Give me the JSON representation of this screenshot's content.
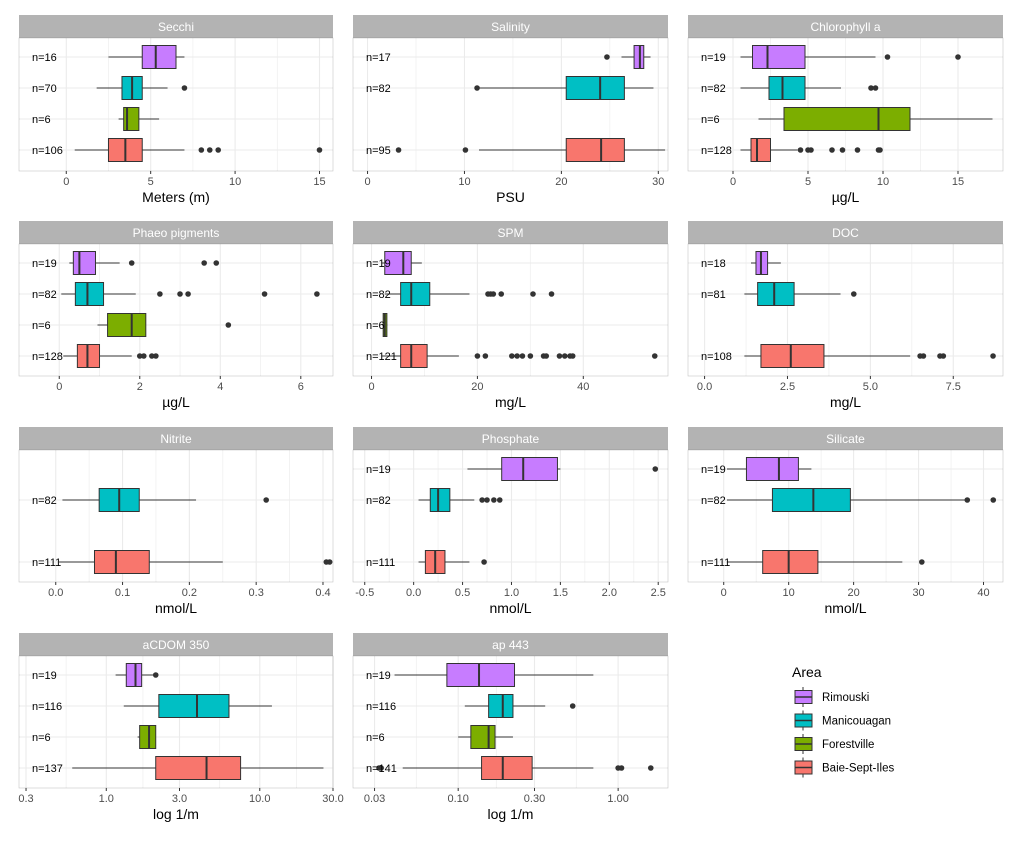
{
  "chart_data": {
    "type": "box",
    "legend": {
      "title": "Area",
      "placement": "bottom-right",
      "entries": [
        {
          "name": "Rimouski",
          "color": "#C77CFF"
        },
        {
          "name": "Manicouagan",
          "color": "#00BFC4"
        },
        {
          "name": "Forestville",
          "color": "#7CAE00"
        },
        {
          "name": "Baie-Sept-Iles",
          "color": "#F8766D"
        }
      ]
    },
    "panels": [
      {
        "title": "Secchi",
        "xlabel": "Meters (m)",
        "scale": "linear",
        "xlim": [
          -2.8,
          15.8
        ],
        "ticks": [
          0,
          5,
          10,
          15
        ],
        "tick_labels": [
          "0",
          "5",
          "10",
          "15"
        ],
        "rows": 4,
        "boxes": [
          {
            "group": "Rimouski",
            "n_label": "n=16",
            "min": 2.5,
            "q1": 4.5,
            "median": 5.3,
            "q3": 6.5,
            "max": 7.0,
            "outliers": []
          },
          {
            "group": "Manicouagan",
            "n_label": "n=70",
            "min": 1.8,
            "q1": 3.3,
            "median": 3.9,
            "q3": 4.5,
            "max": 6.0,
            "outliers": [
              7.0
            ]
          },
          {
            "group": "Forestville",
            "n_label": "n=6",
            "min": 3.1,
            "q1": 3.4,
            "median": 3.6,
            "q3": 4.3,
            "max": 5.5,
            "outliers": []
          },
          {
            "group": "Baie-Sept-Iles",
            "n_label": "n=106",
            "min": 0.5,
            "q1": 2.5,
            "median": 3.5,
            "q3": 4.5,
            "max": 7.0,
            "outliers": [
              8.0,
              8.5,
              9.0,
              15.0
            ]
          }
        ]
      },
      {
        "title": "Salinity",
        "xlabel": "PSU",
        "scale": "linear",
        "xlim": [
          -1.5,
          31
        ],
        "ticks": [
          0,
          10,
          20,
          30
        ],
        "tick_labels": [
          "0",
          "10",
          "20",
          "30"
        ],
        "rows": 3,
        "boxes": [
          {
            "group": "Rimouski",
            "n_label": "n=17",
            "min": 26.2,
            "q1": 27.5,
            "median": 28.1,
            "q3": 28.5,
            "max": 29.2,
            "outliers": [
              24.7
            ]
          },
          {
            "group": "Manicouagan",
            "n_label": "n=82",
            "min": 11.5,
            "q1": 20.5,
            "median": 24.0,
            "q3": 26.5,
            "max": 29.5,
            "outliers": [
              11.3
            ]
          },
          {
            "group": "Baie-Sept-Iles",
            "n_label": "n=95",
            "min": 11.5,
            "q1": 20.5,
            "median": 24.1,
            "q3": 26.5,
            "max": 30.7,
            "outliers": [
              3.2,
              10.1
            ]
          }
        ]
      },
      {
        "title": "Chlorophyll a",
        "xlabel": "µg/L",
        "scale": "linear",
        "xlim": [
          -3,
          18
        ],
        "ticks": [
          0,
          5,
          10,
          15
        ],
        "tick_labels": [
          "0",
          "5",
          "10",
          "15"
        ],
        "rows": 4,
        "boxes": [
          {
            "group": "Rimouski",
            "n_label": "n=19",
            "min": 0.5,
            "q1": 1.3,
            "median": 2.3,
            "q3": 4.8,
            "max": 9.5,
            "outliers": [
              10.3,
              15.0
            ]
          },
          {
            "group": "Manicouagan",
            "n_label": "n=82",
            "min": 0.5,
            "q1": 2.4,
            "median": 3.3,
            "q3": 4.8,
            "max": 7.2,
            "outliers": [
              9.2,
              9.5
            ]
          },
          {
            "group": "Forestville",
            "n_label": "n=6",
            "min": 1.7,
            "q1": 3.4,
            "median": 9.7,
            "q3": 11.8,
            "max": 17.3,
            "outliers": []
          },
          {
            "group": "Baie-Sept-Iles",
            "n_label": "n=128",
            "min": 0.5,
            "q1": 1.2,
            "median": 1.6,
            "q3": 2.5,
            "max": 4.3,
            "outliers": [
              4.5,
              5.0,
              5.2,
              6.6,
              7.3,
              8.3,
              9.7,
              9.8
            ]
          }
        ]
      },
      {
        "title": "Phaeo pigments",
        "xlabel": "µg/L",
        "scale": "linear",
        "xlim": [
          -1.0,
          6.8
        ],
        "ticks": [
          0,
          2,
          4,
          6
        ],
        "tick_labels": [
          "0",
          "2",
          "4",
          "6"
        ],
        "rows": 4,
        "boxes": [
          {
            "group": "Rimouski",
            "n_label": "n=19",
            "min": 0.25,
            "q1": 0.35,
            "median": 0.5,
            "q3": 0.9,
            "max": 1.5,
            "outliers": [
              1.8,
              3.6,
              3.9
            ]
          },
          {
            "group": "Manicouagan",
            "n_label": "n=82",
            "min": 0.05,
            "q1": 0.4,
            "median": 0.7,
            "q3": 1.1,
            "max": 1.9,
            "outliers": [
              2.5,
              3.0,
              3.2,
              5.1,
              6.4
            ]
          },
          {
            "group": "Forestville",
            "n_label": "n=6",
            "min": 0.95,
            "q1": 1.2,
            "median": 1.8,
            "q3": 2.15,
            "max": 2.15,
            "outliers": [
              4.2
            ]
          },
          {
            "group": "Baie-Sept-Iles",
            "n_label": "n=128",
            "min": 0.1,
            "q1": 0.45,
            "median": 0.7,
            "q3": 1.0,
            "max": 1.8,
            "outliers": [
              2.0,
              2.1,
              2.3,
              2.4
            ]
          }
        ]
      },
      {
        "title": "SPM",
        "xlabel": "mg/L",
        "scale": "linear",
        "xlim": [
          -3.5,
          56
        ],
        "ticks": [
          0,
          20,
          40
        ],
        "tick_labels": [
          "0",
          "20",
          "40"
        ],
        "rows": 4,
        "boxes": [
          {
            "group": "Rimouski",
            "n_label": "n=19",
            "min": 2.0,
            "q1": 2.5,
            "median": 6.0,
            "q3": 7.5,
            "max": 9.5,
            "outliers": []
          },
          {
            "group": "Manicouagan",
            "n_label": "n=82",
            "min": 2.5,
            "q1": 5.5,
            "median": 7.5,
            "q3": 11.0,
            "max": 18.5,
            "outliers": [
              22.0,
              22.5,
              23.0,
              24.5,
              30.5,
              34.0
            ]
          },
          {
            "group": "Forestville",
            "n_label": "n=6",
            "min": 2.0,
            "q1": 2.2,
            "median": 2.5,
            "q3": 2.9,
            "max": 3.0,
            "outliers": []
          },
          {
            "group": "Baie-Sept-Iles",
            "n_label": "n=121",
            "min": 2.0,
            "q1": 5.5,
            "median": 7.5,
            "q3": 10.5,
            "max": 16.5,
            "outliers": [
              20.0,
              21.5,
              26.5,
              27.5,
              28.5,
              30.0,
              32.5,
              33.0,
              35.5,
              36.5,
              37.5,
              38.0,
              53.5
            ]
          }
        ]
      },
      {
        "title": "DOC",
        "xlabel": "mg/L",
        "scale": "linear",
        "xlim": [
          -0.5,
          9.0
        ],
        "ticks": [
          0.0,
          2.5,
          5.0,
          7.5
        ],
        "tick_labels": [
          "0.0",
          "2.5",
          "5.0",
          "7.5"
        ],
        "rows": 3,
        "boxes": [
          {
            "group": "Rimouski",
            "n_label": "n=18",
            "min": 1.4,
            "q1": 1.55,
            "median": 1.7,
            "q3": 1.9,
            "max": 2.3,
            "outliers": []
          },
          {
            "group": "Manicouagan",
            "n_label": "n=81",
            "min": 1.2,
            "q1": 1.6,
            "median": 2.1,
            "q3": 2.7,
            "max": 4.1,
            "outliers": [
              4.5
            ]
          },
          {
            "group": "Baie-Sept-Iles",
            "n_label": "n=108",
            "min": 1.2,
            "q1": 1.7,
            "median": 2.6,
            "q3": 3.6,
            "max": 6.2,
            "outliers": [
              6.5,
              6.6,
              7.1,
              7.2,
              8.7
            ]
          }
        ]
      },
      {
        "title": "Nitrite",
        "xlabel": "nmol/L",
        "scale": "linear",
        "xlim": [
          -0.055,
          0.415
        ],
        "ticks": [
          0.0,
          0.1,
          0.2,
          0.3,
          0.4
        ],
        "tick_labels": [
          "0.0",
          "0.1",
          "0.2",
          "0.3",
          "0.4"
        ],
        "rows": 2,
        "boxes": [
          {
            "group": "Manicouagan",
            "n_label": "n=82",
            "min": 0.01,
            "q1": 0.065,
            "median": 0.095,
            "q3": 0.125,
            "max": 0.21,
            "outliers": [
              0.315
            ]
          },
          {
            "group": "Baie-Sept-Iles",
            "n_label": "n=111",
            "min": 0.005,
            "q1": 0.058,
            "median": 0.09,
            "q3": 0.14,
            "max": 0.25,
            "outliers": [
              0.405,
              0.41
            ]
          }
        ]
      },
      {
        "title": "Phosphate",
        "xlabel": "nmol/L",
        "scale": "linear",
        "xlim": [
          -0.62,
          2.6
        ],
        "ticks": [
          -0.5,
          0.0,
          0.5,
          1.0,
          1.5,
          2.0,
          2.5
        ],
        "tick_labels": [
          "-0.5",
          "0.0",
          "0.5",
          "1.0",
          "1.5",
          "2.0",
          "2.5"
        ],
        "rows": 3,
        "boxes": [
          {
            "group": "Rimouski",
            "n_label": "n=19",
            "min": 0.55,
            "q1": 0.9,
            "median": 1.12,
            "q3": 1.47,
            "max": 1.5,
            "outliers": [
              2.47
            ]
          },
          {
            "group": "Manicouagan",
            "n_label": "n=82",
            "min": 0.05,
            "q1": 0.17,
            "median": 0.25,
            "q3": 0.37,
            "max": 0.62,
            "outliers": [
              0.7,
              0.75,
              0.82,
              0.88
            ]
          },
          {
            "group": "Baie-Sept-Iles",
            "n_label": "n=111",
            "min": 0.05,
            "q1": 0.12,
            "median": 0.22,
            "q3": 0.32,
            "max": 0.57,
            "outliers": [
              0.72
            ]
          }
        ]
      },
      {
        "title": "Silicate",
        "xlabel": "nmol/L",
        "scale": "linear",
        "xlim": [
          -5.5,
          43
        ],
        "ticks": [
          0,
          10,
          20,
          30,
          40
        ],
        "tick_labels": [
          "0",
          "10",
          "20",
          "30",
          "40"
        ],
        "rows": 3,
        "boxes": [
          {
            "group": "Rimouski",
            "n_label": "n=19",
            "min": 0.5,
            "q1": 3.5,
            "median": 8.5,
            "q3": 11.5,
            "max": 13.5,
            "outliers": []
          },
          {
            "group": "Manicouagan",
            "n_label": "n=82",
            "min": 0.5,
            "q1": 7.5,
            "median": 13.8,
            "q3": 19.5,
            "max": 37.5,
            "outliers": [
              37.5,
              41.5
            ]
          },
          {
            "group": "Baie-Sept-Iles",
            "n_label": "n=111",
            "min": 0.5,
            "q1": 6.0,
            "median": 10.0,
            "q3": 14.5,
            "max": 27.5,
            "outliers": [
              30.5
            ]
          }
        ]
      },
      {
        "title": "aCDOM 350",
        "xlabel": "log 1/m",
        "scale": "log10",
        "xlim": [
          0.27,
          30
        ],
        "ticks": [
          0.3,
          1.0,
          3.0,
          10.0,
          30.0
        ],
        "tick_labels": [
          "0.3",
          "1.0",
          "3.0",
          "10.0",
          "30.0"
        ],
        "rows": 4,
        "boxes": [
          {
            "group": "Rimouski",
            "n_label": "n=19",
            "min": 1.15,
            "q1": 1.35,
            "median": 1.55,
            "q3": 1.7,
            "max": 2.1,
            "outliers": [
              2.1
            ]
          },
          {
            "group": "Manicouagan",
            "n_label": "n=116",
            "min": 1.3,
            "q1": 2.2,
            "median": 3.9,
            "q3": 6.3,
            "max": 12.0,
            "outliers": []
          },
          {
            "group": "Forestville",
            "n_label": "n=6",
            "min": 1.6,
            "q1": 1.65,
            "median": 1.9,
            "q3": 2.1,
            "max": 2.1,
            "outliers": []
          },
          {
            "group": "Baie-Sept-Iles",
            "n_label": "n=137",
            "min": 0.6,
            "q1": 2.1,
            "median": 4.5,
            "q3": 7.5,
            "max": 26.0,
            "outliers": []
          }
        ]
      },
      {
        "title": "ap 443",
        "xlabel": "log 1/m",
        "scale": "log10",
        "xlim": [
          0.022,
          2.05
        ],
        "ticks": [
          0.03,
          0.1,
          0.3,
          1.0
        ],
        "tick_labels": [
          "0.03",
          "0.10",
          "0.30",
          "1.00"
        ],
        "rows": 4,
        "boxes": [
          {
            "group": "Rimouski",
            "n_label": "n=19",
            "min": 0.04,
            "q1": 0.085,
            "median": 0.135,
            "q3": 0.225,
            "max": 0.7,
            "outliers": []
          },
          {
            "group": "Manicouagan",
            "n_label": "n=116",
            "min": 0.11,
            "q1": 0.155,
            "median": 0.19,
            "q3": 0.22,
            "max": 0.35,
            "outliers": [
              0.52
            ]
          },
          {
            "group": "Forestville",
            "n_label": "n=6",
            "min": 0.1,
            "q1": 0.12,
            "median": 0.155,
            "q3": 0.17,
            "max": 0.22,
            "outliers": []
          },
          {
            "group": "Baie-Sept-Iles",
            "n_label": "n=141",
            "min": 0.045,
            "q1": 0.14,
            "median": 0.19,
            "q3": 0.29,
            "max": 0.7,
            "outliers": [
              0.032,
              0.033,
              1.0,
              1.05,
              1.6
            ]
          }
        ]
      }
    ]
  }
}
